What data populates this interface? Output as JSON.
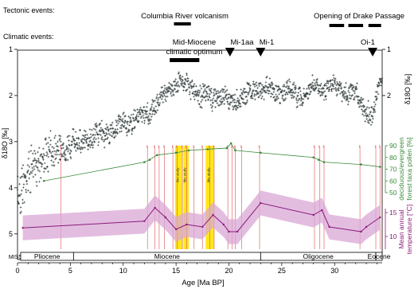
{
  "chart_data": {
    "type": "scatter",
    "xlabel": "Age [Ma BP]",
    "x_ticks": [
      0,
      5,
      10,
      15,
      20,
      25,
      30
    ],
    "xlim": [
      0,
      34.5
    ],
    "left_axis": {
      "label": "δ18O [‰]",
      "ticks": [
        1,
        2,
        3,
        4,
        5
      ],
      "ylim": [
        1,
        5.4
      ],
      "inverted": true
    },
    "right_axis_delta": {
      "label": "δ18O [‰]",
      "ticks": [
        1,
        2
      ]
    },
    "right_axis_pollen": {
      "label": "deciduous/evergreen forest taxa pollen [%]",
      "ticks": [
        50,
        60,
        70,
        80,
        90
      ],
      "color": "#3a8a3a"
    },
    "right_axis_temperature": {
      "label": "Mean annual temperature [°C]",
      "ticks": [
        10,
        15
      ],
      "color": "#8b1a7a"
    },
    "tectonic_events": {
      "label": "Tectonic events:",
      "events": [
        {
          "name": "Columbia River volcanism",
          "start": 14.8,
          "end": 16.4
        },
        {
          "name": "Opening of Drake Passage",
          "segments": [
            [
              29.5,
              30.9
            ],
            [
              31.3,
              32.7
            ],
            [
              33.2,
              34.4
            ]
          ]
        }
      ]
    },
    "climatic_events": {
      "label": "Climatic events:",
      "events": [
        {
          "name": "Mid-Miocene climatic optimum",
          "start": 14.4,
          "end": 17.2
        },
        {
          "name": "Mi-1aa",
          "age": 20.1
        },
        {
          "name": "Mi-1",
          "age": 23.0
        },
        {
          "name": "Oi-1",
          "age": 33.6
        }
      ]
    },
    "epochs": [
      {
        "name": "MIS5?",
        "start": 0,
        "end": 0
      },
      {
        "name": "Pliocene",
        "start": 0.3,
        "end": 5.3
      },
      {
        "name": "Miocene",
        "start": 5.3,
        "end": 23.0
      },
      {
        "name": "Oligocene",
        "start": 23.0,
        "end": 33.9
      },
      {
        "name": "Eocene",
        "start": 33.9,
        "end": 34.5
      }
    ],
    "highlight_bands": [
      {
        "start": 14.9,
        "end": 15.6,
        "text": "this study"
      },
      {
        "start": 15.7,
        "end": 16.2,
        "text": "this study"
      },
      {
        "start": 17.8,
        "end": 18.6,
        "text": "this study"
      }
    ],
    "pollen_series": {
      "x": [
        2.5,
        12.0,
        12.5,
        13.2,
        15.0,
        16.2,
        18.0,
        19.8,
        20.2,
        20.6,
        23.0,
        28.0,
        28.5,
        29.0,
        32.5,
        34.3
      ],
      "y": [
        60,
        76,
        78,
        82,
        84,
        86,
        87,
        88,
        92,
        86,
        84,
        80,
        78,
        76,
        74,
        72
      ]
    },
    "temperature_series": {
      "x": [
        0.5,
        12.0,
        13.0,
        14.0,
        15.0,
        16.0,
        17.5,
        18.5,
        19.5,
        20.0,
        20.8,
        23.0,
        28.0,
        28.8,
        29.5,
        32.5,
        33.0,
        34.3
      ],
      "y": [
        11.8,
        13.2,
        16.0,
        14.0,
        11.5,
        12.5,
        12.0,
        14.5,
        12.5,
        11.0,
        11.0,
        17.0,
        14.5,
        15.5,
        12.0,
        11.0,
        12.0,
        14.0
      ],
      "band_halfwidth": 2.6
    },
    "delta_series_anchors": {
      "x": [
        0,
        1,
        2.5,
        3.5,
        5,
        7,
        9,
        11,
        12.5,
        14,
        15,
        16.5,
        17.5,
        19,
        20,
        21,
        22,
        23,
        24,
        25,
        26,
        27,
        28,
        29,
        30,
        31,
        32,
        33,
        33.6,
        34,
        34.5
      ],
      "y": [
        4.1,
        3.7,
        3.3,
        3.2,
        3.1,
        2.9,
        2.75,
        2.55,
        2.35,
        1.95,
        1.7,
        1.8,
        2.05,
        2.0,
        2.1,
        2.05,
        1.95,
        1.8,
        1.9,
        1.95,
        1.9,
        2.05,
        1.85,
        1.8,
        1.75,
        1.95,
        2.0,
        2.3,
        2.5,
        2.0,
        1.6
      ],
      "scatter_halfwidth": [
        0.55,
        0.45,
        0.35,
        0.3,
        0.25,
        0.22,
        0.2,
        0.2,
        0.2,
        0.2,
        0.2,
        0.2,
        0.2,
        0.2,
        0.2,
        0.2,
        0.2,
        0.2,
        0.2,
        0.2,
        0.2,
        0.2,
        0.2,
        0.2,
        0.2,
        0.2,
        0.2,
        0.2,
        0.2,
        0.15,
        0.1
      ]
    },
    "site_marker_ages": [
      4.1,
      12.3,
      13.0,
      13.4,
      13.9,
      14.7,
      15.1,
      15.6,
      16.0,
      16.7,
      17.5,
      18.2,
      18.6,
      19.9,
      20.3,
      20.6,
      21.2,
      22.9,
      28.1,
      28.6,
      29.0,
      32.4,
      33.9,
      34.3
    ],
    "colors": {
      "delta": "#1f2a2a",
      "pollen": "#3a8a3a",
      "temperature": "#8b1a7a",
      "temperature_band": "#d9a7d6",
      "site_lines": "#e05a5a",
      "highlight": "#ffe600"
    }
  }
}
